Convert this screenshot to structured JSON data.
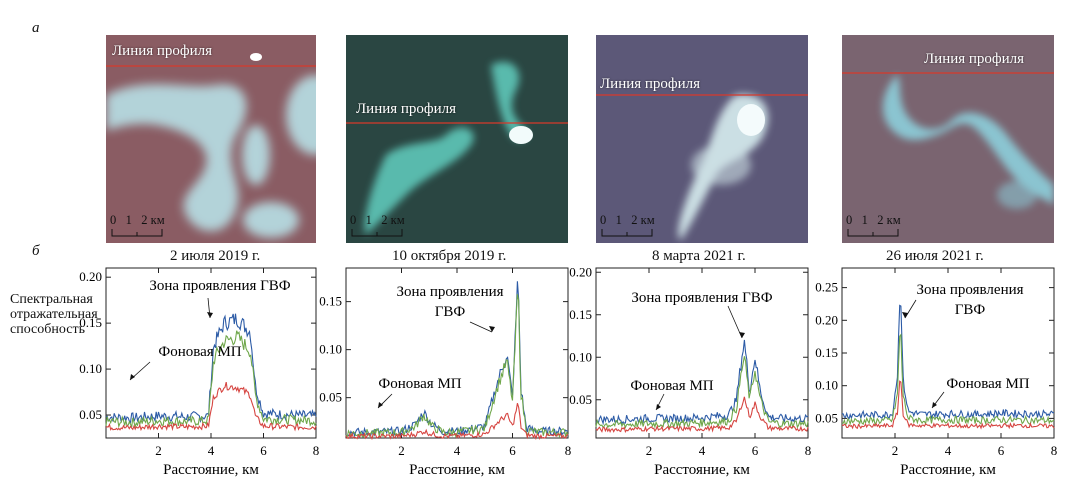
{
  "panel_labels": {
    "top": "а",
    "bottom": "б"
  },
  "profile_line_label": "Линия профиля",
  "scale_bar": {
    "ticks": [
      "0",
      "1",
      "2"
    ],
    "unit": "км"
  },
  "images": [
    {
      "id": "img1",
      "base_color": "#8a5c63",
      "plume_color": "#b8e0e6"
    },
    {
      "id": "img2",
      "base_color": "#2a4642",
      "plume_color": "#62cfc0"
    },
    {
      "id": "img3",
      "base_color": "#5c5878",
      "plume_color": "#d8eef0"
    },
    {
      "id": "img4",
      "base_color": "#7a6470",
      "plume_color": "#8ed6e2"
    }
  ],
  "profile_line_color": "#d8392b",
  "series_colors": {
    "blue": "#2c5ba6",
    "green": "#6fa74a",
    "red": "#d64541"
  },
  "ylabel": "Спектральная отражательная способность",
  "xlabel": "Расстояние, км",
  "chart_data": [
    {
      "type": "line",
      "title": "2 июля 2019 г.",
      "xlabel": "Расстояние, км",
      "ylabel": "Спектральная отражательная способность",
      "xlim": [
        0,
        8
      ],
      "ylim": [
        0.025,
        0.21
      ],
      "xticks": [
        2,
        4,
        6,
        8
      ],
      "yticks": [
        0.05,
        0.1,
        0.15,
        0.2
      ],
      "ytick_labels": [
        "0.05",
        "0.10",
        "0.15",
        "0.20"
      ],
      "annotations": [
        "Зона проявления ГВФ",
        "Фоновая МП"
      ],
      "series": [
        {
          "color": "blue",
          "x": [
            0,
            1,
            2,
            3,
            3.9,
            4.1,
            4.5,
            5.0,
            5.5,
            5.7,
            6.0,
            7,
            8
          ],
          "y": [
            0.048,
            0.047,
            0.049,
            0.048,
            0.049,
            0.125,
            0.15,
            0.155,
            0.14,
            0.08,
            0.052,
            0.05,
            0.049
          ]
        },
        {
          "color": "green",
          "x": [
            0,
            1,
            2,
            3,
            3.9,
            4.1,
            4.5,
            5.0,
            5.5,
            5.7,
            6.0,
            7,
            8
          ],
          "y": [
            0.043,
            0.042,
            0.044,
            0.043,
            0.044,
            0.11,
            0.13,
            0.135,
            0.12,
            0.07,
            0.046,
            0.045,
            0.044
          ]
        },
        {
          "color": "red",
          "x": [
            0,
            1,
            2,
            3,
            3.9,
            4.1,
            4.5,
            5.0,
            5.5,
            5.7,
            6.0,
            7,
            8
          ],
          "y": [
            0.037,
            0.036,
            0.038,
            0.037,
            0.038,
            0.07,
            0.082,
            0.08,
            0.072,
            0.048,
            0.038,
            0.037,
            0.037
          ]
        }
      ]
    },
    {
      "type": "line",
      "title": "10 октября 2019 г.",
      "xlabel": "Расстояние, км",
      "ylabel": "",
      "xlim": [
        0,
        8
      ],
      "ylim": [
        0.008,
        0.185
      ],
      "xticks": [
        2,
        4,
        6,
        8
      ],
      "yticks": [
        0.05,
        0.1,
        0.15
      ],
      "ytick_labels": [
        "0.05",
        "0.10",
        "0.15"
      ],
      "annotations": [
        "Зона проявления ГВФ",
        "Фоновая МП"
      ],
      "series": [
        {
          "color": "blue",
          "x": [
            0,
            1,
            2,
            2.5,
            2.8,
            3.1,
            3.5,
            4,
            5,
            5.5,
            5.8,
            6.0,
            6.2,
            6.3,
            6.5,
            7,
            8
          ],
          "y": [
            0.014,
            0.014,
            0.015,
            0.022,
            0.035,
            0.022,
            0.015,
            0.015,
            0.02,
            0.07,
            0.095,
            0.05,
            0.18,
            0.06,
            0.018,
            0.015,
            0.015
          ]
        },
        {
          "color": "green",
          "x": [
            0,
            1,
            2,
            2.5,
            2.8,
            3.1,
            3.5,
            4,
            5,
            5.5,
            5.8,
            6.0,
            6.2,
            6.3,
            6.5,
            7,
            8
          ],
          "y": [
            0.013,
            0.013,
            0.014,
            0.02,
            0.032,
            0.02,
            0.014,
            0.014,
            0.018,
            0.065,
            0.088,
            0.046,
            0.17,
            0.056,
            0.016,
            0.014,
            0.014
          ]
        },
        {
          "color": "red",
          "x": [
            0,
            1,
            2,
            2.5,
            2.8,
            3.1,
            3.5,
            4,
            5,
            5.5,
            5.8,
            6.0,
            6.2,
            6.3,
            6.5,
            7,
            8
          ],
          "y": [
            0.01,
            0.01,
            0.01,
            0.012,
            0.015,
            0.012,
            0.01,
            0.01,
            0.012,
            0.025,
            0.032,
            0.02,
            0.045,
            0.02,
            0.011,
            0.01,
            0.01
          ]
        }
      ]
    },
    {
      "type": "line",
      "title": "8 марта 2021 г.",
      "xlabel": "Расстояние, км",
      "ylabel": "",
      "xlim": [
        0,
        8
      ],
      "ylim": [
        0.005,
        0.205
      ],
      "xticks": [
        2,
        4,
        6,
        8
      ],
      "yticks": [
        0.05,
        0.1,
        0.15,
        0.2
      ],
      "ytick_labels": [
        "0.05",
        "0.10",
        "0.15",
        "0.20"
      ],
      "annotations": [
        "Зона проявления ГВФ",
        "Фоновая МП"
      ],
      "series": [
        {
          "color": "blue",
          "x": [
            0,
            1,
            2,
            3,
            4,
            5,
            5.3,
            5.5,
            5.6,
            5.8,
            6.0,
            6.2,
            6.5,
            7,
            8
          ],
          "y": [
            0.027,
            0.027,
            0.028,
            0.028,
            0.029,
            0.032,
            0.05,
            0.1,
            0.118,
            0.06,
            0.1,
            0.06,
            0.03,
            0.028,
            0.028
          ]
        },
        {
          "color": "green",
          "x": [
            0,
            1,
            2,
            3,
            4,
            5,
            5.3,
            5.5,
            5.6,
            5.8,
            6.0,
            6.2,
            6.5,
            7,
            8
          ],
          "y": [
            0.021,
            0.021,
            0.022,
            0.022,
            0.023,
            0.025,
            0.04,
            0.085,
            0.1,
            0.05,
            0.085,
            0.05,
            0.024,
            0.022,
            0.022
          ]
        },
        {
          "color": "red",
          "x": [
            0,
            1,
            2,
            3,
            4,
            5,
            5.3,
            5.5,
            5.6,
            5.8,
            6.0,
            6.2,
            6.5,
            7,
            8
          ],
          "y": [
            0.015,
            0.015,
            0.016,
            0.016,
            0.016,
            0.017,
            0.025,
            0.045,
            0.052,
            0.03,
            0.045,
            0.03,
            0.017,
            0.016,
            0.016
          ]
        }
      ]
    },
    {
      "type": "line",
      "title": "26 июля 2021 г.",
      "xlabel": "Расстояние, км",
      "ylabel": "",
      "xlim": [
        0,
        8
      ],
      "ylim": [
        0.02,
        0.28
      ],
      "xticks": [
        2,
        4,
        6,
        8
      ],
      "yticks": [
        0.05,
        0.1,
        0.15,
        0.2,
        0.25
      ],
      "ytick_labels": [
        "0.05",
        "0.10",
        "0.15",
        "0.20",
        "0.25"
      ],
      "annotations": [
        "Зона проявления ГВФ",
        "Фоновая МП"
      ],
      "series": [
        {
          "color": "blue",
          "x": [
            0,
            1,
            1.9,
            2.1,
            2.2,
            2.3,
            2.5,
            3,
            4,
            5,
            6,
            7,
            8
          ],
          "y": [
            0.055,
            0.055,
            0.056,
            0.12,
            0.265,
            0.11,
            0.06,
            0.056,
            0.057,
            0.056,
            0.058,
            0.057,
            0.056
          ]
        },
        {
          "color": "green",
          "x": [
            0,
            1,
            1.9,
            2.1,
            2.2,
            2.3,
            2.5,
            3,
            4,
            5,
            6,
            7,
            8
          ],
          "y": [
            0.046,
            0.046,
            0.047,
            0.09,
            0.2,
            0.085,
            0.05,
            0.047,
            0.048,
            0.047,
            0.048,
            0.047,
            0.047
          ]
        },
        {
          "color": "red",
          "x": [
            0,
            1,
            1.9,
            2.1,
            2.2,
            2.3,
            2.5,
            3,
            4,
            5,
            6,
            7,
            8
          ],
          "y": [
            0.038,
            0.038,
            0.039,
            0.06,
            0.12,
            0.058,
            0.04,
            0.039,
            0.039,
            0.038,
            0.039,
            0.039,
            0.038
          ]
        }
      ]
    }
  ]
}
